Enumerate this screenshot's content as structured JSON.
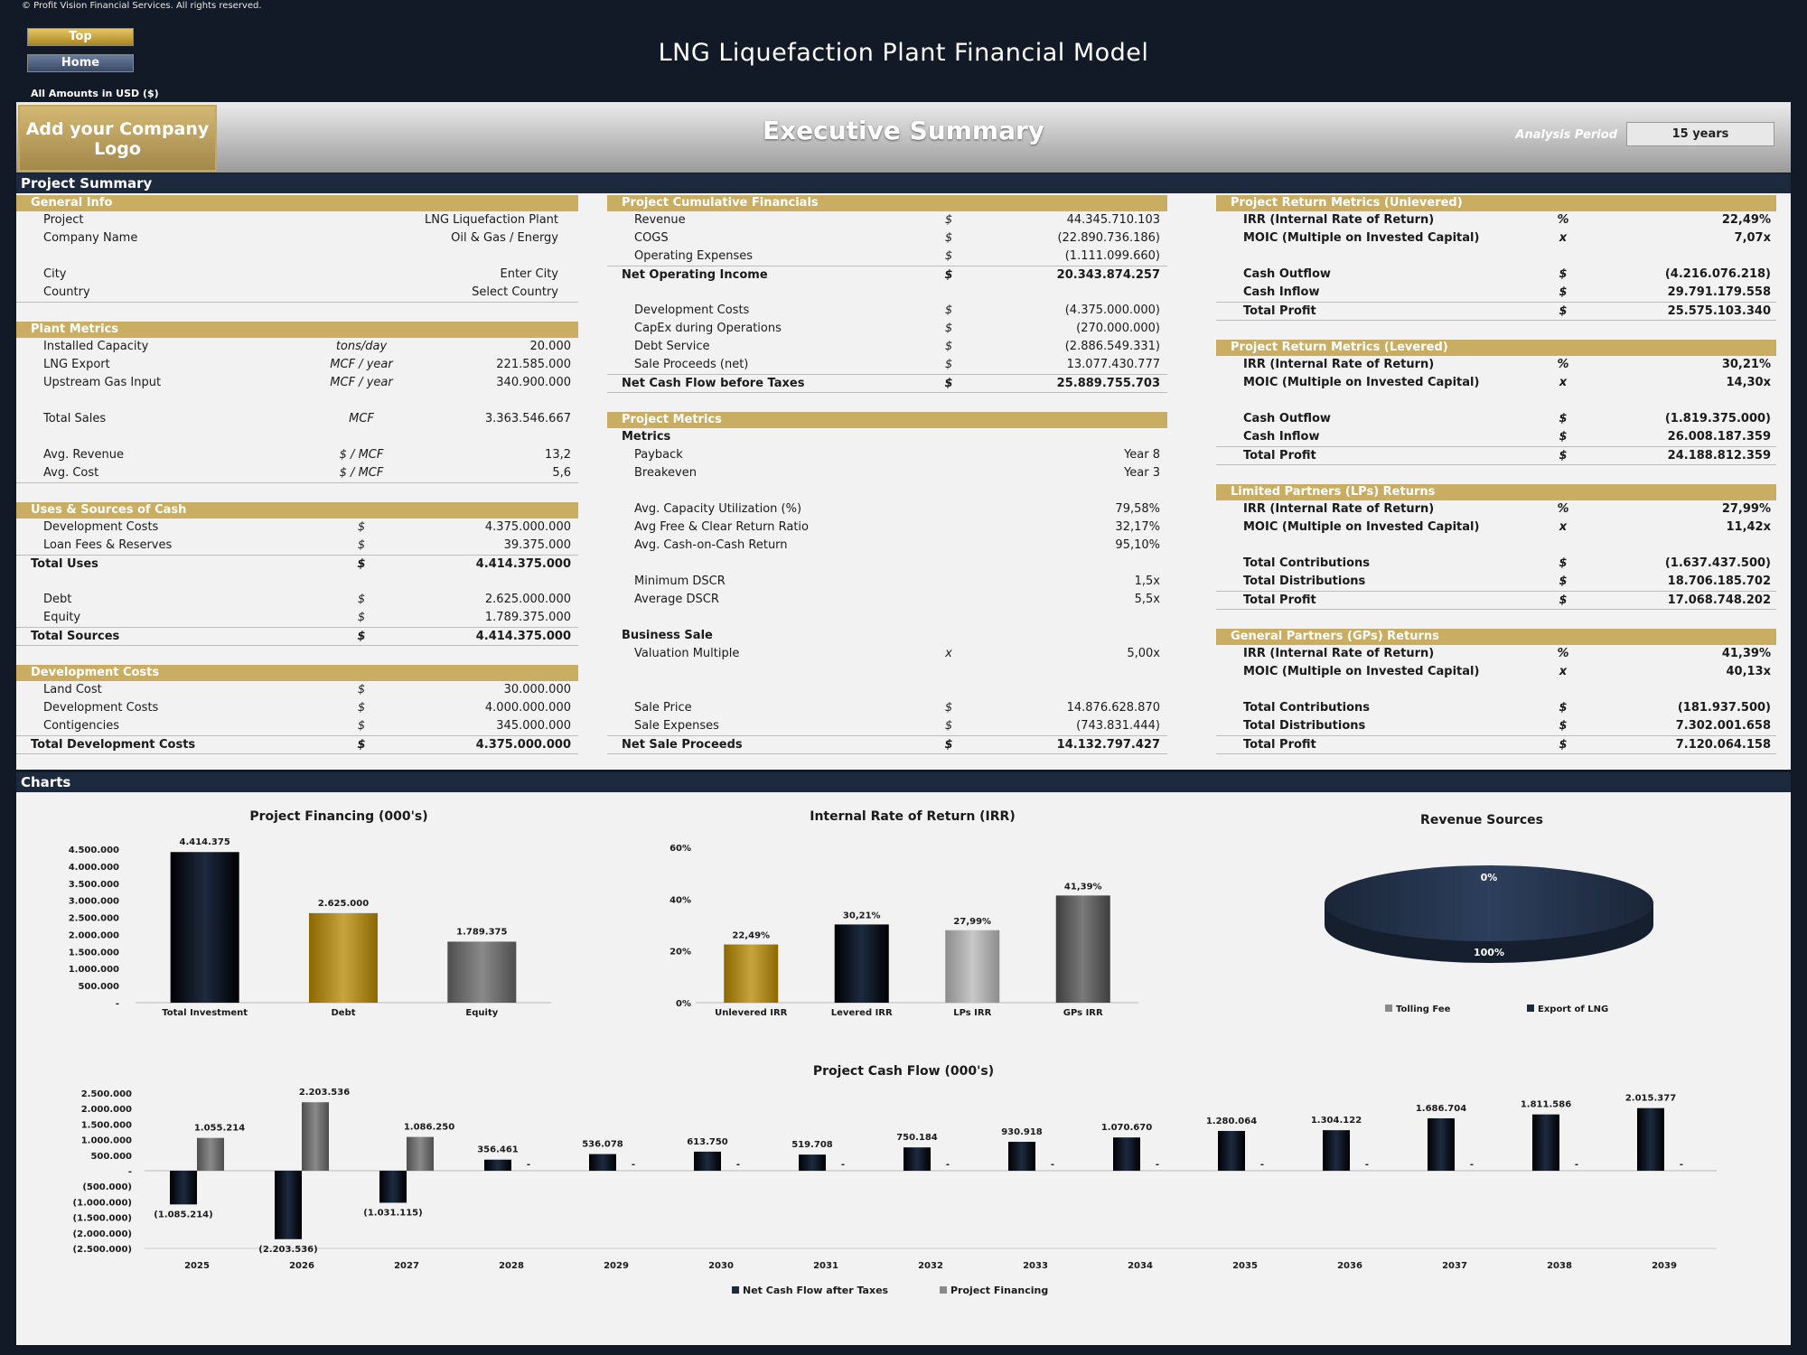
{
  "copyright": "© Profit Vision Financial Services. All rights reserved.",
  "nav": {
    "top": "Top",
    "home": "Home"
  },
  "title": "LNG Liquefaction Plant Financial Model",
  "amounts": "All Amounts in  USD ($)",
  "logo": "Add your Company Logo",
  "exec_title": "Executive Summary",
  "analysis": {
    "label": "Analysis Period",
    "value": "15 years"
  },
  "sections": {
    "summary": "Project Summary",
    "charts": "Charts"
  },
  "blocks": [
    {
      "id": "general-info",
      "title": "General Info",
      "x": 18,
      "y": 216,
      "w": 622,
      "ux": 330,
      "uw": 110,
      "vx": 440,
      "vw": 178,
      "rows": [
        {
          "l": "Project",
          "u": "",
          "v": "LNG Liquefaction Plant",
          "b": false
        },
        {
          "l": "Company Name",
          "u": "",
          "v": "Oil & Gas / Energy",
          "b": false
        },
        {
          "l": "",
          "u": "",
          "v": "",
          "b": false
        },
        {
          "l": "City",
          "u": "",
          "v": "Enter City",
          "b": false
        },
        {
          "l": "Country",
          "u": "",
          "v": "Select Country",
          "b": false
        }
      ]
    },
    {
      "id": "plant-metrics",
      "title": "Plant Metrics",
      "x": 18,
      "y": 356,
      "w": 622,
      "ux": 340,
      "uw": 120,
      "vx": 460,
      "vw": 172,
      "rows": [
        {
          "l": "Installed Capacity",
          "u": "tons/day",
          "v": "20.000"
        },
        {
          "l": "LNG Export",
          "u": "MCF / year",
          "v": "221.585.000"
        },
        {
          "l": "Upstream Gas Input",
          "u": "MCF / year",
          "v": "340.900.000"
        },
        {
          "l": "",
          "u": "",
          "v": ""
        },
        {
          "l": "Total Sales",
          "u": "MCF",
          "v": "3.363.546.667"
        },
        {
          "l": "",
          "u": "",
          "v": ""
        },
        {
          "l": "Avg. Revenue",
          "u": "$ / MCF",
          "v": "13,2"
        },
        {
          "l": "Avg. Cost",
          "u": "$ / MCF",
          "v": "5,6"
        }
      ]
    },
    {
      "id": "uses-sources",
      "title": "Uses & Sources of Cash",
      "x": 18,
      "y": 556,
      "w": 622,
      "ux": 380,
      "uw": 40,
      "vx": 460,
      "vw": 172,
      "rows": [
        {
          "l": "Development Costs",
          "u": "$",
          "v": "4.375.000.000"
        },
        {
          "l": "Loan Fees & Reserves",
          "u": "$",
          "v": "39.375.000"
        },
        {
          "l": "Total Uses",
          "u": "$",
          "v": "4.414.375.000",
          "b": true,
          "t": true,
          "ind": false
        },
        {
          "l": "",
          "u": "",
          "v": ""
        },
        {
          "l": "Debt",
          "u": "$",
          "v": "2.625.000.000"
        },
        {
          "l": "Equity",
          "u": "$",
          "v": "1.789.375.000"
        },
        {
          "l": "Total Sources",
          "u": "$",
          "v": "4.414.375.000",
          "b": true,
          "t": true,
          "ind": false
        }
      ]
    },
    {
      "id": "development-costs",
      "title": "Development Costs",
      "x": 18,
      "y": 736,
      "w": 622,
      "ux": 380,
      "uw": 40,
      "vx": 460,
      "vw": 172,
      "rows": [
        {
          "l": "Land Cost",
          "u": "$",
          "v": "30.000.000"
        },
        {
          "l": "Development Costs",
          "u": "$",
          "v": "4.000.000.000"
        },
        {
          "l": "Contigencies",
          "u": "$",
          "v": "345.000.000"
        },
        {
          "l": "Total Development Costs",
          "u": "$",
          "v": "4.375.000.000",
          "b": true,
          "t": true,
          "ind": false
        }
      ]
    },
    {
      "id": "cumulative-financials",
      "title": "Project Cumulative Financials",
      "x": 672,
      "y": 216,
      "w": 620,
      "ux": 1030,
      "uw": 40,
      "vx": 1100,
      "vw": 184,
      "rows": [
        {
          "l": "Revenue",
          "u": "$",
          "v": "44.345.710.103"
        },
        {
          "l": "COGS",
          "u": "$",
          "v": "(22.890.736.186)"
        },
        {
          "l": "Operating Expenses",
          "u": "$",
          "v": "(1.111.099.660)"
        },
        {
          "l": "Net Operating Income",
          "u": "$",
          "v": "20.343.874.257",
          "b": true,
          "t": true,
          "ind": false
        },
        {
          "l": "",
          "u": "",
          "v": ""
        },
        {
          "l": "Development Costs",
          "u": "$",
          "v": "(4.375.000.000)"
        },
        {
          "l": "CapEx during Operations",
          "u": "$",
          "v": "(270.000.000)"
        },
        {
          "l": "Debt Service",
          "u": "$",
          "v": "(2.886.549.331)"
        },
        {
          "l": "Sale Proceeds (net)",
          "u": "$",
          "v": "13.077.430.777"
        },
        {
          "l": "Net Cash Flow before Taxes",
          "u": "$",
          "v": "25.889.755.703",
          "b": true,
          "t": true,
          "ind": false
        }
      ]
    },
    {
      "id": "project-metrics",
      "title": "Project Metrics",
      "x": 672,
      "y": 456,
      "w": 620,
      "ux": 1030,
      "uw": 40,
      "vx": 1100,
      "vw": 184,
      "rows": [
        {
          "l": "Metrics",
          "u": "",
          "v": "",
          "b": true,
          "ind": false
        },
        {
          "l": "Payback",
          "u": "",
          "v": "Year 8"
        },
        {
          "l": "Breakeven",
          "u": "",
          "v": "Year 3"
        },
        {
          "l": "",
          "u": "",
          "v": ""
        },
        {
          "l": "Avg. Capacity Utilization (%)",
          "u": "",
          "v": "79,58%"
        },
        {
          "l": "Avg Free & Clear Return Ratio",
          "u": "",
          "v": "32,17%"
        },
        {
          "l": "Avg. Cash-on-Cash Return",
          "u": "",
          "v": "95,10%"
        },
        {
          "l": "",
          "u": "",
          "v": ""
        },
        {
          "l": "Minimum DSCR",
          "u": "",
          "v": "1,5x"
        },
        {
          "l": "Average DSCR",
          "u": "",
          "v": "5,5x"
        },
        {
          "l": "",
          "u": "",
          "v": ""
        },
        {
          "l": "Business Sale",
          "u": "",
          "v": "",
          "b": true,
          "ind": false
        },
        {
          "l": "Valuation Multiple",
          "u": "x",
          "v": "5,00x"
        },
        {
          "l": "",
          "u": "",
          "v": ""
        },
        {
          "l": "",
          "u": "",
          "v": ""
        },
        {
          "l": "Sale Price",
          "u": "$",
          "v": "14.876.628.870"
        },
        {
          "l": "Sale Expenses",
          "u": "$",
          "v": "(743.831.444)"
        },
        {
          "l": "Net Sale Proceeds",
          "u": "$",
          "v": "14.132.797.427",
          "b": true,
          "t": true,
          "ind": false
        }
      ]
    },
    {
      "id": "unlevered-returns",
      "title": "Project Return Metrics (Unlevered)",
      "x": 1346,
      "y": 216,
      "w": 620,
      "ux": 1710,
      "uw": 40,
      "vx": 1760,
      "vw": 200,
      "bold": true,
      "rows": [
        {
          "l": "IRR (Internal Rate of Return)",
          "u": "%",
          "v": "22,49%"
        },
        {
          "l": "MOIC (Multiple on Invested Capital)",
          "u": "x",
          "v": "7,07x"
        },
        {
          "l": "",
          "u": "",
          "v": ""
        },
        {
          "l": "Cash Outflow",
          "u": "$",
          "v": "(4.216.076.218)"
        },
        {
          "l": "Cash Inflow",
          "u": "$",
          "v": "29.791.179.558"
        },
        {
          "l": "Total Profit",
          "u": "$",
          "v": "25.575.103.340",
          "t": true
        }
      ]
    },
    {
      "id": "levered-returns",
      "title": "Project Return Metrics (Levered)",
      "x": 1346,
      "y": 376,
      "w": 620,
      "ux": 1710,
      "uw": 40,
      "vx": 1760,
      "vw": 200,
      "bold": true,
      "rows": [
        {
          "l": "IRR (Internal Rate of Return)",
          "u": "%",
          "v": "30,21%"
        },
        {
          "l": "MOIC (Multiple on Invested Capital)",
          "u": "x",
          "v": "14,30x"
        },
        {
          "l": "",
          "u": "",
          "v": ""
        },
        {
          "l": "Cash Outflow",
          "u": "$",
          "v": "(1.819.375.000)"
        },
        {
          "l": "Cash Inflow",
          "u": "$",
          "v": "26.008.187.359"
        },
        {
          "l": "Total Profit",
          "u": "$",
          "v": "24.188.812.359",
          "t": true
        }
      ]
    },
    {
      "id": "lp-returns",
      "title": "Limited Partners (LPs) Returns",
      "x": 1346,
      "y": 536,
      "w": 620,
      "ux": 1710,
      "uw": 40,
      "vx": 1760,
      "vw": 200,
      "bold": true,
      "rows": [
        {
          "l": "IRR (Internal Rate of Return)",
          "u": "%",
          "v": "27,99%"
        },
        {
          "l": "MOIC (Multiple on Invested Capital)",
          "u": "x",
          "v": "11,42x"
        },
        {
          "l": "",
          "u": "",
          "v": ""
        },
        {
          "l": "Total Contributions",
          "u": "$",
          "v": "(1.637.437.500)"
        },
        {
          "l": "Total Distributions",
          "u": "$",
          "v": "18.706.185.702"
        },
        {
          "l": "Total Profit",
          "u": "$",
          "v": "17.068.748.202",
          "t": true
        }
      ]
    },
    {
      "id": "gp-returns",
      "title": "General Partners (GPs) Returns",
      "x": 1346,
      "y": 696,
      "w": 620,
      "ux": 1710,
      "uw": 40,
      "vx": 1760,
      "vw": 200,
      "bold": true,
      "rows": [
        {
          "l": "IRR (Internal Rate of Return)",
          "u": "%",
          "v": "41,39%"
        },
        {
          "l": "MOIC (Multiple on Invested Capital)",
          "u": "x",
          "v": "40,13x"
        },
        {
          "l": "",
          "u": "",
          "v": ""
        },
        {
          "l": "Total Contributions",
          "u": "$",
          "v": "(181.937.500)"
        },
        {
          "l": "Total Distributions",
          "u": "$",
          "v": "7.302.001.658"
        },
        {
          "l": "Total Profit",
          "u": "$",
          "v": "7.120.064.158",
          "t": true
        }
      ]
    }
  ],
  "chart_data": [
    {
      "type": "bar",
      "title": "Project Financing (000's)",
      "categories": [
        "Total Investment",
        "Debt",
        "Equity"
      ],
      "values": [
        4414375,
        2625000,
        1789375
      ],
      "labels": [
        "4.414.375",
        "2.625.000",
        "1.789.375"
      ],
      "yticks": [
        "4.500.000",
        "4.000.000",
        "3.500.000",
        "3.000.000",
        "2.500.000",
        "2.000.000",
        "1.500.000",
        "1.000.000",
        "500.000",
        "-"
      ],
      "ylim": [
        0,
        4500000
      ],
      "colors": [
        "#1d2a3e",
        "#c8a43e",
        "#8a8a8a"
      ]
    },
    {
      "type": "bar",
      "title": "Internal Rate of Return (IRR)",
      "categories": [
        "Unlevered IRR",
        "Levered IRR",
        "LPs IRR",
        "GPs IRR"
      ],
      "values": [
        22.49,
        30.21,
        27.99,
        41.39
      ],
      "labels": [
        "22,49%",
        "30,21%",
        "27,99%",
        "41,39%"
      ],
      "yticks": [
        "60%",
        "40%",
        "20%",
        "0%"
      ],
      "ylim": [
        0,
        60
      ],
      "colors": [
        "#c8a43e",
        "#1d2a3e",
        "#c8c8c8",
        "#7a7a7a"
      ]
    },
    {
      "type": "pie",
      "title": "Revenue Sources",
      "series": [
        {
          "name": "Tolling Fee",
          "value": 0,
          "label": "0%"
        },
        {
          "name": "Export of LNG",
          "value": 100,
          "label": "100%"
        }
      ],
      "legend": "bottom"
    },
    {
      "type": "bar",
      "title": "Project Cash Flow (000's)",
      "categories": [
        "2025",
        "2026",
        "2027",
        "2028",
        "2029",
        "2030",
        "2031",
        "2032",
        "2033",
        "2034",
        "2035",
        "2036",
        "2037",
        "2038",
        "2039"
      ],
      "series": [
        {
          "name": "Net Cash Flow after Taxes",
          "values": [
            -1085214,
            -2203536,
            -1031115,
            356461,
            536078,
            613750,
            519708,
            750184,
            930918,
            1070670,
            1280064,
            1304122,
            1686704,
            1811586,
            2015377
          ],
          "labels": [
            "(1.085.214)",
            "(2.203.536)",
            "(1.031.115)",
            "356.461",
            "536.078",
            "613.750",
            "519.708",
            "750.184",
            "930.918",
            "1.070.670",
            "1.280.064",
            "1.304.122",
            "1.686.704",
            "1.811.586",
            "2.015.377"
          ]
        },
        {
          "name": "Project Financing",
          "values": [
            1055214,
            2203536,
            1086250,
            0,
            0,
            0,
            0,
            0,
            0,
            0,
            0,
            0,
            0,
            0,
            0
          ],
          "labels": [
            "1.055.214",
            "2.203.536",
            "1.086.250",
            "-",
            "-",
            "-",
            "-",
            "-",
            "-",
            "-",
            "-",
            "-",
            "-",
            "-",
            "-"
          ]
        }
      ],
      "yticks": [
        "2.500.000",
        "2.000.000",
        "1.500.000",
        "1.000.000",
        "500.000",
        "-",
        "(500.000)",
        "(1.000.000)",
        "(1.500.000)",
        "(2.000.000)",
        "(2.500.000)"
      ],
      "ylim": [
        -2500000,
        2500000
      ],
      "legend": "bottom"
    }
  ]
}
